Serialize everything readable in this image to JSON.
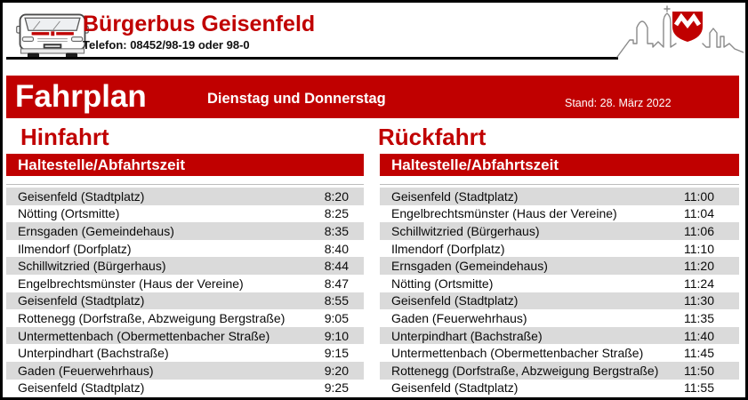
{
  "header": {
    "title": "Bürgerbus Geisenfeld",
    "phone": "Telefon: 08452/98-19 oder 98-0"
  },
  "banner": {
    "title": "Fahrplan",
    "subtitle": "Dienstag und Donnerstag",
    "stand": "Stand: 28. März 2022"
  },
  "colors": {
    "accent_red": "#C00000",
    "row_gray": "#DADADA",
    "crest_red": "#C00000"
  },
  "icons": {
    "van": "bus-van-icon",
    "skyline": "town-skyline-icon",
    "crest": "geisenfeld-crest-icon"
  },
  "columns": [
    {
      "title": "Hinfahrt",
      "table_header": "Haltestelle/Abfahrtszeit",
      "rows": [
        {
          "stop": "Geisenfeld (Stadtplatz)",
          "time": "8:20"
        },
        {
          "stop": "Nötting (Ortsmitte)",
          "time": "8:25"
        },
        {
          "stop": "Ernsgaden (Gemeindehaus)",
          "time": "8:35"
        },
        {
          "stop": "Ilmendorf (Dorfplatz)",
          "time": "8:40"
        },
        {
          "stop": "Schillwitzried (Bürgerhaus)",
          "time": "8:44"
        },
        {
          "stop": "Engelbrechtsmünster (Haus der Vereine)",
          "time": "8:47"
        },
        {
          "stop": "Geisenfeld (Stadtplatz)",
          "time": "8:55"
        },
        {
          "stop": "Rottenegg (Dorfstraße, Abzweigung Bergstraße)",
          "time": "9:05"
        },
        {
          "stop": "Untermettenbach (Obermettenbacher Straße)",
          "time": "9:10"
        },
        {
          "stop": "Unterpindhart (Bachstraße)",
          "time": "9:15"
        },
        {
          "stop": "Gaden (Feuerwehrhaus)",
          "time": "9:20"
        },
        {
          "stop": "Geisenfeld (Stadtplatz)",
          "time": "9:25"
        }
      ]
    },
    {
      "title": "Rückfahrt",
      "table_header": "Haltestelle/Abfahrtszeit",
      "rows": [
        {
          "stop": "Geisenfeld (Stadtplatz)",
          "time": "11:00"
        },
        {
          "stop": "Engelbrechtsmünster (Haus der Vereine)",
          "time": "11:04"
        },
        {
          "stop": "Schillwitzried (Bürgerhaus)",
          "time": "11:06"
        },
        {
          "stop": "Ilmendorf (Dorfplatz)",
          "time": "11:10"
        },
        {
          "stop": "Ernsgaden (Gemeindehaus)",
          "time": "11:20"
        },
        {
          "stop": "Nötting (Ortsmitte)",
          "time": "11:24"
        },
        {
          "stop": "Geisenfeld (Stadtplatz)",
          "time": "11:30"
        },
        {
          "stop": "Gaden (Feuerwehrhaus)",
          "time": "11:35"
        },
        {
          "stop": "Unterpindhart (Bachstraße)",
          "time": "11:40"
        },
        {
          "stop": "Untermettenbach (Obermettenbacher Straße)",
          "time": "11:45"
        },
        {
          "stop": "Rottenegg (Dorfstraße, Abzweigung Bergstraße)",
          "time": "11:50"
        },
        {
          "stop": "Geisenfeld (Stadtplatz)",
          "time": "11:55"
        }
      ]
    }
  ]
}
